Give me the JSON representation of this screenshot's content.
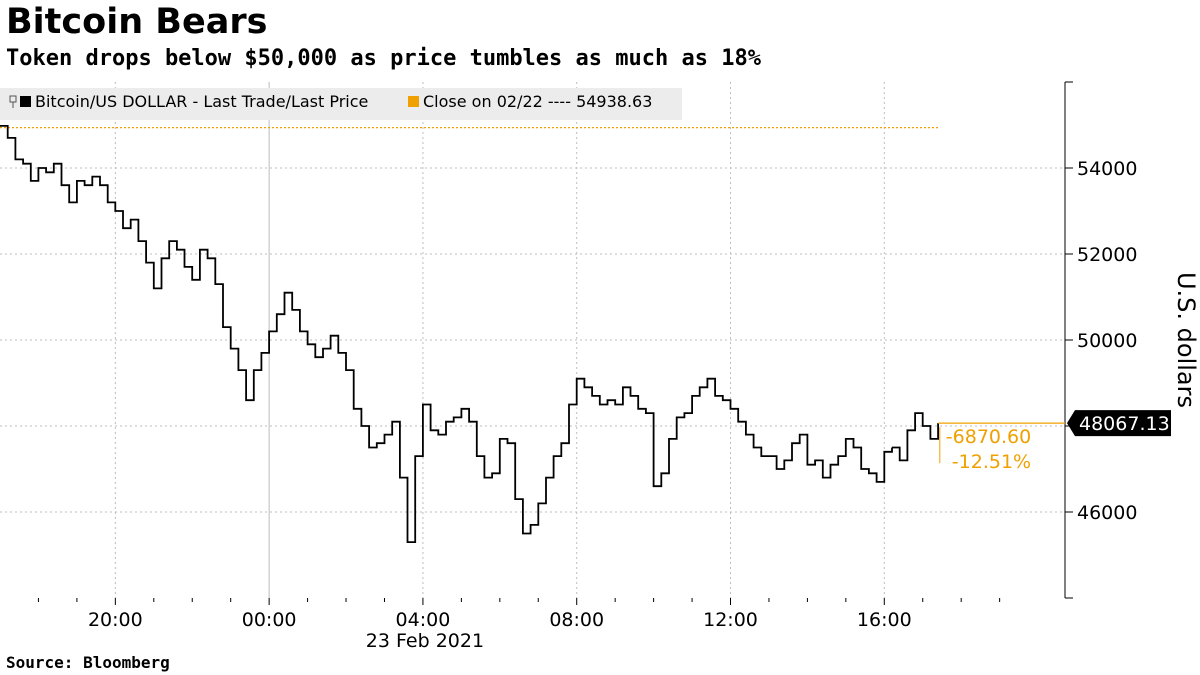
{
  "header": {
    "title": "Bitcoin Bears",
    "subtitle": "Token drops below $50,000 as price tumbles as much as 18%"
  },
  "footer": {
    "source": "Source: Bloomberg"
  },
  "colors": {
    "series": "#000000",
    "reference": "#f0a000",
    "grid": "#bdbdbd",
    "legend_bg": "#ececec"
  },
  "chart_data": {
    "type": "line",
    "legend": [
      {
        "label": "Bitcoin/US DOLLAR - Last Trade/Last Price",
        "color": "#000000"
      },
      {
        "label": "Close on 02/22 ---- 54938.63",
        "color": "#f0a000"
      }
    ],
    "x_ticks": [
      {
        "label": "20:00",
        "h": 20
      },
      {
        "label": "00:00",
        "h": 24
      },
      {
        "label": "04:00",
        "h": 28
      },
      {
        "label": "08:00",
        "h": 32
      },
      {
        "label": "12:00",
        "h": 36
      },
      {
        "label": "16:00",
        "h": 40
      }
    ],
    "x_date_label": "23 Feb 2021",
    "xlim_hours": [
      17,
      44.7
    ],
    "ylim": [
      44000,
      56000
    ],
    "y_ticks": [
      "46000",
      "48000",
      "50000",
      "52000",
      "54000"
    ],
    "ylabel": "U.S. dollars",
    "reference": {
      "name": "Close on 02/22",
      "value": 54938.63
    },
    "last": {
      "value": 48067.13,
      "label": "48067.13",
      "change": "-6870.60",
      "change_pct": "-12.51%"
    },
    "series": [
      {
        "name": "Bitcoin/US DOLLAR - Last Trade/Last Price",
        "x_hours": [
          17.0,
          17.2,
          17.4,
          17.6,
          17.8,
          18.0,
          18.2,
          18.4,
          18.6,
          18.8,
          19.0,
          19.2,
          19.4,
          19.6,
          19.8,
          20.0,
          20.2,
          20.4,
          20.6,
          20.8,
          21.0,
          21.2,
          21.4,
          21.6,
          21.8,
          22.0,
          22.2,
          22.4,
          22.6,
          22.8,
          23.0,
          23.2,
          23.4,
          23.6,
          23.8,
          24.0,
          24.2,
          24.4,
          24.6,
          24.8,
          25.0,
          25.2,
          25.4,
          25.6,
          25.8,
          26.0,
          26.2,
          26.4,
          26.6,
          26.8,
          27.0,
          27.2,
          27.4,
          27.6,
          27.8,
          28.0,
          28.2,
          28.4,
          28.6,
          28.8,
          29.0,
          29.2,
          29.4,
          29.6,
          29.8,
          30.0,
          30.2,
          30.4,
          30.6,
          30.8,
          31.0,
          31.2,
          31.4,
          31.6,
          31.8,
          32.0,
          32.2,
          32.4,
          32.6,
          32.8,
          33.0,
          33.2,
          33.4,
          33.6,
          33.8,
          34.0,
          34.2,
          34.4,
          34.6,
          34.8,
          35.0,
          35.2,
          35.4,
          35.6,
          35.8,
          36.0,
          36.2,
          36.4,
          36.6,
          36.8,
          37.0,
          37.2,
          37.4,
          37.6,
          37.8,
          38.0,
          38.2,
          38.4,
          38.6,
          38.8,
          39.0,
          39.2,
          39.4,
          39.6,
          39.8,
          40.0,
          40.2
        ],
        "values": [
          54980,
          54700,
          54200,
          54100,
          53700,
          54000,
          53900,
          54100,
          53600,
          53200,
          53700,
          53600,
          53800,
          53600,
          53200,
          53000,
          52600,
          52800,
          52300,
          51800,
          51200,
          51900,
          52300,
          52100,
          51700,
          51400,
          52100,
          51900,
          51300,
          50300,
          49800,
          49300,
          48600,
          49300,
          49700,
          50200,
          50600,
          51100,
          50700,
          50200,
          49900,
          49600,
          49800,
          50100,
          49700,
          49300,
          48400,
          48000,
          47500,
          47600,
          47800,
          48100,
          46800,
          45300,
          47300,
          48500,
          47900,
          47800,
          48100,
          48200,
          48400,
          48100,
          47300,
          46800,
          46900,
          47700,
          47600,
          46300,
          45500,
          45700,
          46200,
          46800,
          47300,
          47600,
          48500,
          49100,
          48900,
          48700,
          48500,
          48600,
          48500,
          48900,
          48700,
          48400,
          48300,
          46600,
          46900,
          47700,
          48200,
          48300,
          48700,
          48900,
          49100,
          48700,
          48600,
          48400,
          48100,
          47800,
          47500,
          47300,
          47300,
          47000,
          47200,
          47600,
          47800,
          47100,
          47200,
          46800,
          47100,
          47300,
          47700,
          47500,
          47000,
          46900,
          46700,
          47400,
          47500
        ]
      },
      {
        "name": "tail",
        "x_hours": [
          40.2,
          40.4,
          40.6,
          40.8,
          41.0,
          41.2,
          41.4
        ],
        "values": [
          47500,
          47200,
          47900,
          48300,
          48000,
          47700,
          48067
        ]
      }
    ]
  }
}
